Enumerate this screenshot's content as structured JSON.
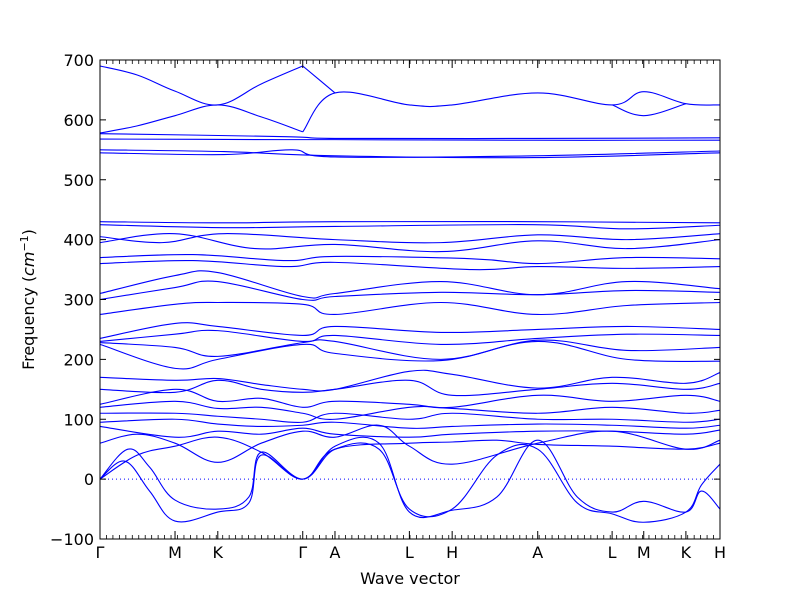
{
  "chart_data": {
    "type": "line",
    "title": "",
    "xlabel": "Wave vector",
    "ylabel_main": "Frequency (",
    "ylabel_math": "cm",
    "ylabel_sup": "−1",
    "ylabel_close": ")",
    "ylim": [
      -100,
      700
    ],
    "y_ticks": [
      -100,
      0,
      100,
      200,
      300,
      400,
      500,
      600,
      700
    ],
    "xlim": [
      0,
      1.0
    ],
    "x_ticks": [
      {
        "label": "Γ",
        "x": 0.0
      },
      {
        "label": "M",
        "x": 0.121
      },
      {
        "label": "K",
        "x": 0.19
      },
      {
        "label": "Γ",
        "x": 0.327
      },
      {
        "label": "A",
        "x": 0.379
      },
      {
        "label": "L",
        "x": 0.499
      },
      {
        "label": "H",
        "x": 0.568
      },
      {
        "label": "A",
        "x": 0.706
      },
      {
        "label": "L",
        "x": 0.826
      },
      {
        "label": "M",
        "x": 0.877
      },
      {
        "label": "K",
        "x": 0.945
      },
      {
        "label": "H",
        "x": 1.0
      }
    ],
    "zero_line": {
      "y": 0,
      "style": "dotted"
    },
    "line_color": "#0000ff",
    "grid": false,
    "legend": "none",
    "series": [
      {
        "x": [
          0,
          0.06,
          0.121,
          0.19,
          0.26,
          0.327
        ],
        "y": [
          690,
          675,
          648,
          625,
          660,
          690
        ]
      },
      {
        "x": [
          0.327,
          0.379,
          0.499,
          0.568,
          0.706,
          0.826,
          0.877,
          0.945,
          1.0
        ],
        "y": [
          580,
          645,
          625,
          625,
          645,
          625,
          647,
          627,
          625
        ]
      },
      {
        "x": [
          0,
          0.06,
          0.121,
          0.19,
          0.26,
          0.327
        ],
        "y": [
          578,
          590,
          607,
          625,
          605,
          580
        ]
      },
      {
        "x": [
          0.327,
          0.379
        ],
        "y": [
          690,
          645
        ]
      },
      {
        "x": [
          0.826,
          0.877,
          0.945
        ],
        "y": [
          625,
          607,
          627
        ]
      },
      {
        "x": [
          0,
          0.3,
          0.379,
          0.7,
          1.0
        ],
        "y": [
          577,
          572,
          569,
          569,
          570
        ]
      },
      {
        "x": [
          0,
          0.3,
          0.379,
          0.7,
          1.0
        ],
        "y": [
          568,
          567,
          567,
          566,
          566
        ]
      },
      {
        "x": [
          0,
          0.2,
          0.379,
          0.7,
          1.0
        ],
        "y": [
          550,
          547,
          540,
          537,
          545
        ]
      },
      {
        "x": [
          0,
          0.2,
          0.31,
          0.379,
          0.7,
          1.0
        ],
        "y": [
          545,
          542,
          550,
          538,
          540,
          548
        ]
      },
      {
        "x": [
          0,
          0.2,
          0.379,
          0.7,
          1.0
        ],
        "y": [
          430,
          428,
          430,
          430,
          428
        ]
      },
      {
        "x": [
          0,
          0.2,
          0.379,
          0.7,
          0.85,
          1.0
        ],
        "y": [
          425,
          420,
          422,
          425,
          418,
          424
        ]
      },
      {
        "x": [
          0,
          0.1,
          0.2,
          0.379,
          0.55,
          0.706,
          0.85,
          1.0
        ],
        "y": [
          405,
          395,
          410,
          400,
          395,
          408,
          400,
          410
        ]
      },
      {
        "x": [
          0,
          0.12,
          0.25,
          0.379,
          0.55,
          0.706,
          0.85,
          1.0
        ],
        "y": [
          395,
          410,
          385,
          392,
          380,
          398,
          385,
          400
        ]
      },
      {
        "x": [
          0,
          0.15,
          0.3,
          0.379,
          0.6,
          0.706,
          0.85,
          1.0
        ],
        "y": [
          370,
          375,
          365,
          372,
          368,
          360,
          370,
          368
        ]
      },
      {
        "x": [
          0,
          0.15,
          0.3,
          0.379,
          0.6,
          0.706,
          0.85,
          1.0
        ],
        "y": [
          360,
          365,
          355,
          362,
          350,
          355,
          352,
          355
        ]
      },
      {
        "x": [
          0,
          0.121,
          0.19,
          0.327,
          0.379,
          0.55,
          0.706,
          0.85,
          1.0
        ],
        "y": [
          310,
          340,
          345,
          305,
          310,
          330,
          308,
          330,
          318
        ]
      },
      {
        "x": [
          0,
          0.121,
          0.19,
          0.327,
          0.379,
          0.55,
          0.706,
          0.85,
          1.0
        ],
        "y": [
          300,
          320,
          330,
          300,
          305,
          312,
          308,
          315,
          312
        ]
      },
      {
        "x": [
          0,
          0.121,
          0.19,
          0.327,
          0.379,
          0.55,
          0.706,
          0.85,
          1.0
        ],
        "y": [
          275,
          292,
          295,
          292,
          275,
          295,
          275,
          290,
          295
        ]
      },
      {
        "x": [
          0,
          0.121,
          0.19,
          0.327,
          0.379,
          0.55,
          0.706,
          0.85,
          1.0
        ],
        "y": [
          235,
          260,
          255,
          240,
          255,
          245,
          250,
          255,
          250
        ]
      },
      {
        "x": [
          0,
          0.121,
          0.19,
          0.327,
          0.379,
          0.55,
          0.706,
          0.85,
          1.0
        ],
        "y": [
          230,
          242,
          248,
          230,
          240,
          225,
          235,
          242,
          240
        ]
      },
      {
        "x": [
          0,
          0.121,
          0.19,
          0.327,
          0.379,
          0.55,
          0.706,
          0.85,
          1.0
        ],
        "y": [
          228,
          220,
          205,
          228,
          230,
          200,
          232,
          215,
          220
        ]
      },
      {
        "x": [
          0,
          0.121,
          0.19,
          0.327,
          0.379,
          0.55,
          0.706,
          0.85,
          1.0
        ],
        "y": [
          225,
          185,
          200,
          225,
          210,
          198,
          230,
          200,
          197
        ]
      },
      {
        "x": [
          0,
          0.121,
          0.19,
          0.26,
          0.327,
          0.379,
          0.499,
          0.568,
          0.706,
          0.826,
          0.945,
          1.0
        ],
        "y": [
          170,
          165,
          168,
          158,
          150,
          150,
          180,
          175,
          152,
          170,
          160,
          178
        ]
      },
      {
        "x": [
          0,
          0.121,
          0.19,
          0.26,
          0.327,
          0.379,
          0.499,
          0.568,
          0.706,
          0.826,
          0.945,
          1.0
        ],
        "y": [
          150,
          145,
          165,
          150,
          145,
          150,
          165,
          140,
          150,
          160,
          150,
          160
        ]
      },
      {
        "x": [
          0,
          0.121,
          0.19,
          0.26,
          0.327,
          0.379,
          0.499,
          0.568,
          0.706,
          0.826,
          0.945,
          1.0
        ],
        "y": [
          125,
          150,
          130,
          135,
          120,
          130,
          125,
          120,
          140,
          130,
          140,
          130
        ]
      },
      {
        "x": [
          0,
          0.121,
          0.19,
          0.26,
          0.327,
          0.379,
          0.499,
          0.568,
          0.706,
          0.826,
          0.945,
          1.0
        ],
        "y": [
          120,
          130,
          118,
          120,
          110,
          100,
          120,
          118,
          110,
          120,
          110,
          115
        ]
      },
      {
        "x": [
          0,
          0.121,
          0.19,
          0.26,
          0.327,
          0.379,
          0.499,
          0.568,
          0.706,
          0.826,
          0.945,
          1.0
        ],
        "y": [
          110,
          110,
          105,
          100,
          95,
          110,
          100,
          110,
          100,
          100,
          95,
          100
        ]
      },
      {
        "x": [
          0,
          0.121,
          0.19,
          0.26,
          0.327,
          0.379,
          0.499,
          0.568,
          0.706,
          0.826,
          0.945,
          1.0
        ],
        "y": [
          95,
          100,
          92,
          88,
          90,
          95,
          85,
          88,
          92,
          90,
          85,
          90
        ]
      },
      {
        "x": [
          0,
          0.121,
          0.19,
          0.26,
          0.327,
          0.379,
          0.499,
          0.568,
          0.706,
          0.826,
          0.945,
          1.0
        ],
        "y": [
          88,
          70,
          80,
          75,
          85,
          75,
          70,
          75,
          80,
          80,
          75,
          82
        ]
      },
      {
        "x": [
          0,
          0.06,
          0.121,
          0.19,
          0.26,
          0.327,
          0.379,
          0.45,
          0.499,
          0.568,
          0.706,
          0.826,
          0.945,
          1.0
        ],
        "y": [
          60,
          75,
          60,
          28,
          60,
          80,
          70,
          90,
          55,
          25,
          60,
          80,
          50,
          65
        ]
      },
      {
        "x": [
          0,
          0.06,
          0.121,
          0.19,
          0.26,
          0.327,
          0.379,
          0.499,
          0.568,
          0.64,
          0.706,
          0.826,
          0.945,
          1.0
        ],
        "y": [
          0,
          40,
          55,
          70,
          45,
          0,
          50,
          60,
          62,
          65,
          58,
          55,
          50,
          60
        ]
      },
      {
        "x": [
          0,
          0.045,
          0.08,
          0.121,
          0.19,
          0.24,
          0.26,
          0.327,
          0.379,
          0.45,
          0.499,
          0.568,
          0.64,
          0.706,
          0.77,
          0.826,
          0.877,
          0.945,
          0.97,
          1.0
        ],
        "y": [
          0,
          50,
          20,
          -35,
          -50,
          -30,
          45,
          0,
          50,
          50,
          -50,
          -50,
          40,
          50,
          -40,
          -58,
          -72,
          -55,
          -10,
          25
        ]
      },
      {
        "x": [
          0,
          0.04,
          0.08,
          0.121,
          0.19,
          0.24,
          0.26,
          0.327,
          0.379,
          0.45,
          0.499,
          0.568,
          0.64,
          0.706,
          0.77,
          0.826,
          0.877,
          0.945,
          0.97,
          1.0
        ],
        "y": [
          0,
          30,
          -20,
          -70,
          -55,
          -40,
          40,
          0,
          55,
          60,
          -55,
          -52,
          -30,
          65,
          -30,
          -55,
          -37,
          -55,
          -20,
          -50
        ]
      }
    ]
  }
}
